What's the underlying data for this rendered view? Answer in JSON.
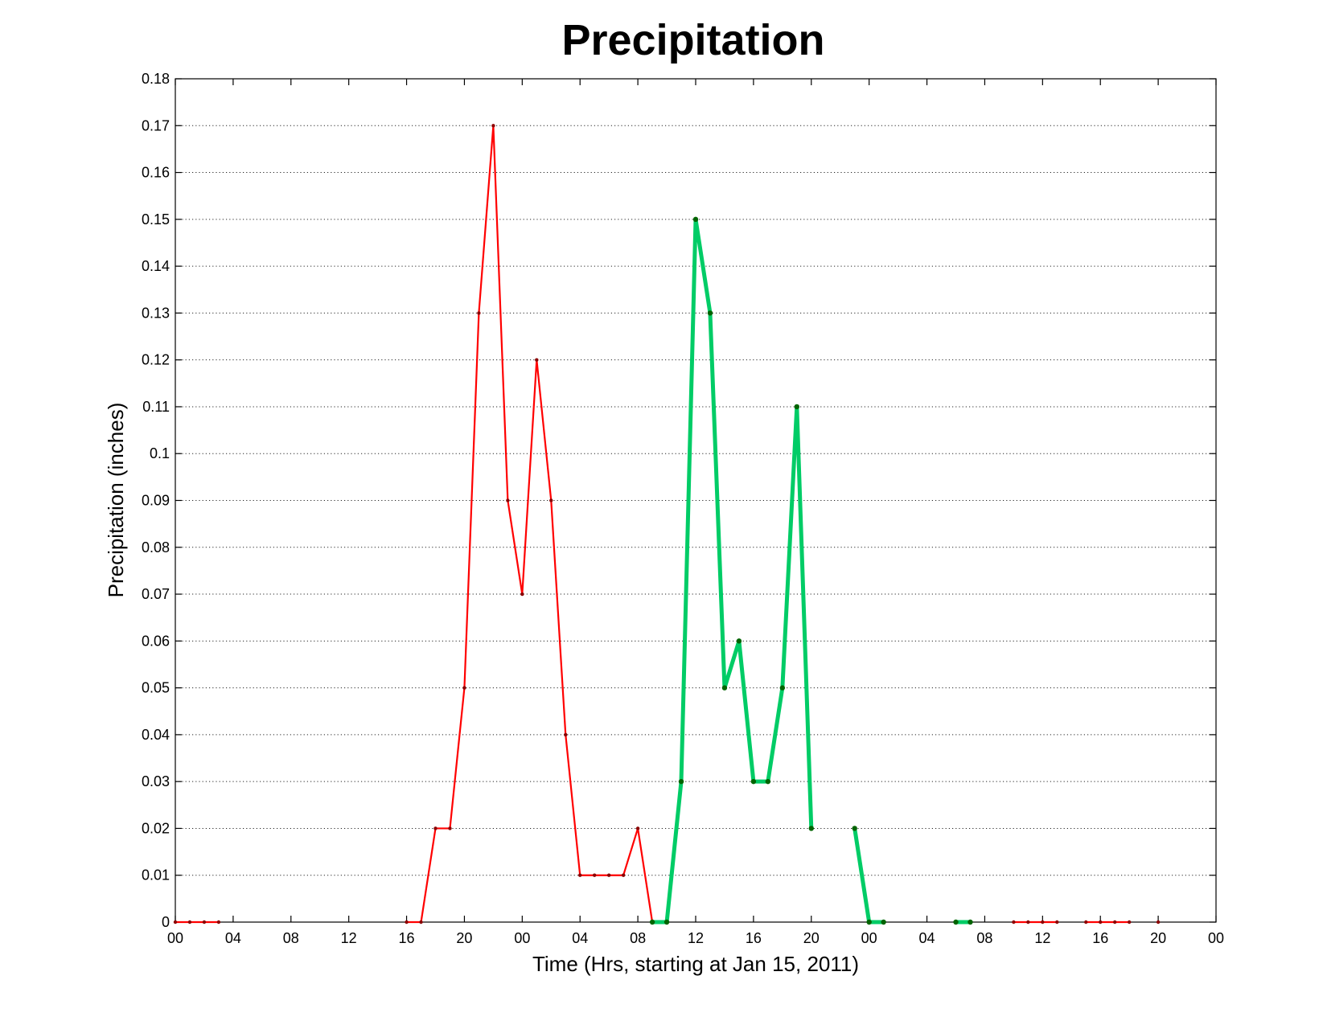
{
  "chart_data": {
    "type": "line",
    "title": "Precipitation",
    "xlabel": "Time (Hrs, starting at Jan 15, 2011)",
    "ylabel": "Precipitation (inches)",
    "xlim": [
      0,
      72
    ],
    "ylim": [
      0,
      0.18
    ],
    "grid": "horizontal dotted",
    "x_tick_values": [
      0,
      4,
      8,
      12,
      16,
      20,
      24,
      28,
      32,
      36,
      40,
      44,
      48,
      52,
      56,
      60,
      64,
      68,
      72
    ],
    "x_tick_labels": [
      "00",
      "04",
      "08",
      "12",
      "16",
      "20",
      "00",
      "04",
      "08",
      "12",
      "16",
      "20",
      "00",
      "04",
      "08",
      "12",
      "16",
      "20",
      "00"
    ],
    "y_ticks": [
      0,
      0.01,
      0.02,
      0.03,
      0.04,
      0.05,
      0.06,
      0.07,
      0.08,
      0.09,
      0.1,
      0.11,
      0.12,
      0.13,
      0.14,
      0.15,
      0.16,
      0.17,
      0.18
    ],
    "y_tick_labels": [
      "0",
      "0.01",
      "0.02",
      "0.03",
      "0.04",
      "0.05",
      "0.06",
      "0.07",
      "0.08",
      "0.09",
      "0.1",
      "0.11",
      "0.12",
      "0.13",
      "0.14",
      "0.15",
      "0.16",
      "0.17",
      "0.18"
    ],
    "series": [
      {
        "color": "#ff0000",
        "marker_color": "#8b0000",
        "line_width": "thin",
        "segments": [
          [
            [
              0,
              0
            ],
            [
              1,
              0
            ],
            [
              2,
              0
            ],
            [
              3,
              0
            ]
          ],
          [
            [
              16,
              0
            ],
            [
              17,
              0
            ],
            [
              18,
              0.02
            ],
            [
              19,
              0.02
            ],
            [
              20,
              0.05
            ],
            [
              21,
              0.13
            ],
            [
              22,
              0.17
            ],
            [
              23,
              0.09
            ],
            [
              24,
              0.07
            ],
            [
              25,
              0.12
            ],
            [
              26,
              0.09
            ],
            [
              27,
              0.04
            ],
            [
              28,
              0.01
            ],
            [
              29,
              0.01
            ],
            [
              30,
              0.01
            ],
            [
              31,
              0.01
            ],
            [
              32,
              0.02
            ],
            [
              33,
              0
            ]
          ],
          [
            [
              58,
              0
            ],
            [
              59,
              0
            ],
            [
              60,
              0
            ],
            [
              61,
              0
            ]
          ],
          [
            [
              63,
              0
            ],
            [
              64,
              0
            ],
            [
              65,
              0
            ],
            [
              66,
              0
            ]
          ],
          [
            [
              68,
              0
            ]
          ]
        ]
      },
      {
        "color": "#00cc66",
        "marker_color": "#006400",
        "line_width": "thick",
        "segments": [
          [
            [
              33,
              0
            ],
            [
              34,
              0
            ],
            [
              35,
              0.03
            ],
            [
              36,
              0.15
            ],
            [
              37,
              0.13
            ],
            [
              38,
              0.05
            ],
            [
              39,
              0.06
            ],
            [
              40,
              0.03
            ],
            [
              41,
              0.03
            ],
            [
              42,
              0.05
            ],
            [
              43,
              0.11
            ],
            [
              44,
              0.02
            ]
          ],
          [
            [
              47,
              0.02
            ],
            [
              48,
              0
            ],
            [
              49,
              0
            ]
          ],
          [
            [
              54,
              0
            ],
            [
              55,
              0
            ]
          ]
        ]
      }
    ]
  }
}
